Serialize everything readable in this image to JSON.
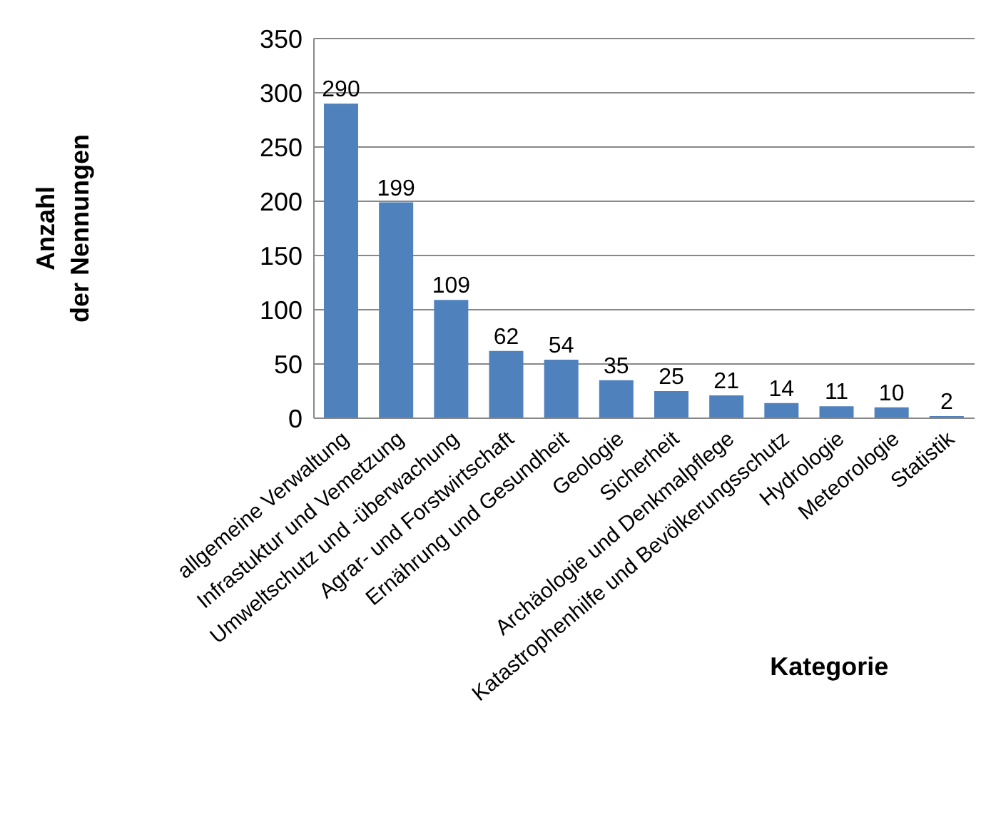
{
  "chart_data": {
    "type": "bar",
    "xlabel": "Kategorie",
    "ylabel": "Anzahl\nder Nennungen",
    "categories": [
      "allgemeine Verwaltung",
      "Infrastuktur und Vemetzung",
      "Umweltschutz und -überwachung",
      "Agrar- und Forstwirtschaft",
      "Ernährung und Gesundheit",
      "Geologie",
      "Sicherheit",
      "Archäologie und Denkmalpflege",
      "Katastrophenhilfe und Bevölkerungsschutz",
      "Hydrologie",
      "Meteorologie",
      "Statistik"
    ],
    "values": [
      290,
      199,
      109,
      62,
      54,
      35,
      25,
      21,
      14,
      11,
      10,
      2
    ],
    "color": "#4f81bd",
    "ylim": [
      0,
      350
    ],
    "yticks": [
      0,
      50,
      100,
      150,
      200,
      250,
      300,
      350
    ],
    "grid": "y",
    "data_labels": true
  }
}
